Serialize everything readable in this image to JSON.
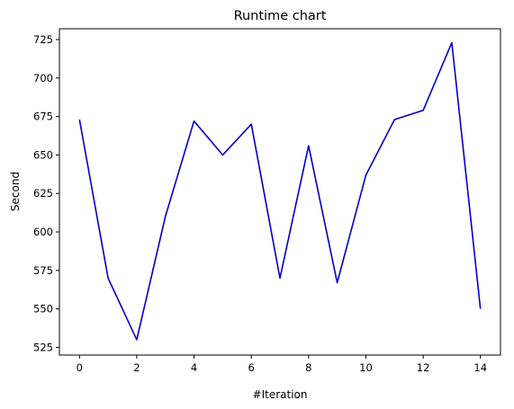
{
  "chart_data": {
    "type": "line",
    "title": "Runtime chart",
    "xlabel": "#Iteration",
    "ylabel": "Second",
    "xlim": [
      -0.7,
      14.7
    ],
    "ylim": [
      520,
      732
    ],
    "xticks": [
      0,
      2,
      4,
      6,
      8,
      10,
      12,
      14
    ],
    "yticks": [
      525,
      550,
      575,
      600,
      625,
      650,
      675,
      700,
      725
    ],
    "grid": false,
    "series": [
      {
        "color": "#0000cc",
        "x": [
          0,
          1,
          2,
          3,
          4,
          5,
          6,
          7,
          8,
          9,
          10,
          11,
          12,
          13,
          14
        ],
        "y": [
          673,
          570,
          530,
          610,
          672,
          650,
          670,
          570,
          656,
          567,
          637,
          673,
          679,
          723,
          550
        ]
      }
    ]
  }
}
